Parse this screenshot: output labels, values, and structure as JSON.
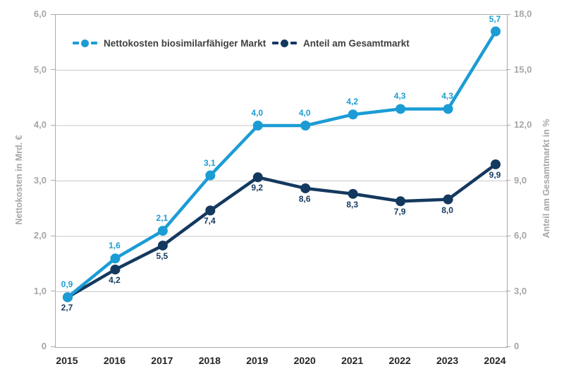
{
  "chart_data": {
    "type": "line",
    "categories": [
      "2015",
      "2016",
      "2017",
      "2018",
      "2019",
      "2020",
      "2021",
      "2022",
      "2023",
      "2024"
    ],
    "series": [
      {
        "name": "Nettokosten biosimilarfähiger Markt",
        "axis": "left",
        "color": "#1B9CD5",
        "values": [
          0.9,
          1.6,
          2.1,
          3.1,
          4.0,
          4.0,
          4.2,
          4.3,
          4.3,
          5.7
        ],
        "labels": [
          "0,9",
          "1,6",
          "2,1",
          "3,1",
          "4,0",
          "4,0",
          "4,2",
          "4,3",
          "4,3",
          "5,7"
        ],
        "label_position": "above"
      },
      {
        "name": "Anteil am Gesamtmarkt",
        "axis": "right",
        "color": "#14395F",
        "values": [
          2.7,
          4.2,
          5.5,
          7.4,
          9.2,
          8.6,
          8.3,
          7.9,
          8.0,
          9.9
        ],
        "labels": [
          "2,7",
          "4,2",
          "5,5",
          "7,4",
          "9,2",
          "8,6",
          "8,3",
          "7,9",
          "8,0",
          "9,9"
        ],
        "label_position": "below"
      }
    ],
    "left_axis": {
      "title": "Nettokosten in Mrd. €",
      "min": 0,
      "max": 6,
      "step": 1,
      "tick_labels": [
        "0",
        "1,0",
        "2,0",
        "3,0",
        "4,0",
        "5,0",
        "6,0"
      ]
    },
    "right_axis": {
      "title": "Anteil am Gesamtmarkt in %",
      "min": 0,
      "max": 18,
      "step": 3,
      "tick_labels": [
        "0",
        "3,0",
        "6,0",
        "9,0",
        "12,0",
        "15,0",
        "18,0"
      ]
    },
    "grid": true,
    "legend_position": "top-inside"
  },
  "colors": {
    "grid": "#C9C9C9",
    "plot_border": "#ABABAB",
    "axis_text": "#A6A6A6",
    "year_text": "#262626",
    "legend_text": "#404040",
    "background": "#FFFFFF"
  }
}
